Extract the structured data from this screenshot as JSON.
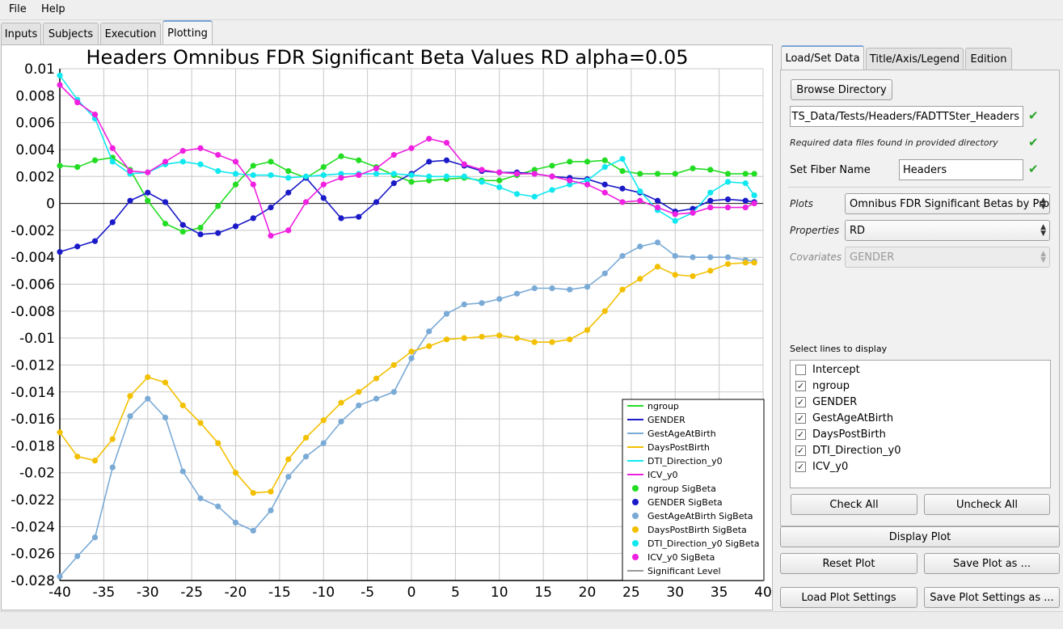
{
  "menu": {
    "file": "File",
    "help": "Help"
  },
  "main_tabs": [
    "Inputs",
    "Subjects",
    "Execution",
    "Plotting"
  ],
  "side_tabs": [
    "Load/Set Data",
    "Title/Axis/Legend",
    "Edition"
  ],
  "panel": {
    "browse_label": "Browse Directory",
    "directory_value": "TS_Data/Tests/Headers/FADTTSter_Headers",
    "files_found_text": "Required data files found in provided directory",
    "fiber_name_label": "Set Fiber Name",
    "fiber_name_value": "Headers",
    "plots_label": "Plots",
    "plots_value": "Omnibus FDR Significant Betas by Properties",
    "properties_label": "Properties",
    "properties_value": "RD",
    "covariates_label": "Covariates",
    "covariates_value": "GENDER",
    "lines_label": "Select lines to display",
    "lines": [
      {
        "label": "Intercept",
        "checked": false
      },
      {
        "label": "ngroup",
        "checked": true
      },
      {
        "label": "GENDER",
        "checked": true
      },
      {
        "label": "GestAgeAtBirth",
        "checked": true
      },
      {
        "label": "DaysPostBirth",
        "checked": true
      },
      {
        "label": "DTI_Direction_y0",
        "checked": true
      },
      {
        "label": "ICV_y0",
        "checked": true
      }
    ],
    "check_all": "Check All",
    "uncheck_all": "Uncheck All"
  },
  "buttons": {
    "display_plot": "Display Plot",
    "reset_plot": "Reset Plot",
    "save_plot_as": "Save Plot as ...",
    "load_settings": "Load Plot Settings",
    "save_settings_as": "Save Plot Settings as ..."
  },
  "colors": {
    "ngroup": "#22dd22",
    "GENDER": "#1a1ac8",
    "GestAgeAtBirth": "#7aaad6",
    "DaysPostBirth": "#f2c000",
    "DTI_Direction_y0": "#10e8f0",
    "ICV_y0": "#f020e0",
    "significant": "#333333"
  },
  "chart_data": {
    "type": "line",
    "title": "Headers Omnibus FDR Significant Beta Values RD alpha=0.05",
    "xlim": [
      -40,
      40
    ],
    "ylim": [
      -0.028,
      0.01
    ],
    "x_ticks": [
      -40,
      -35,
      -30,
      -25,
      -20,
      -15,
      -10,
      -5,
      0,
      5,
      10,
      15,
      20,
      25,
      30,
      35,
      40
    ],
    "y_ticks": [
      0.01,
      0.008,
      0.006,
      0.004,
      0.002,
      0,
      -0.002,
      -0.004,
      -0.006,
      -0.008,
      -0.01,
      -0.012,
      -0.014,
      -0.016,
      -0.018,
      -0.02,
      -0.022,
      -0.024,
      -0.026,
      -0.028
    ],
    "x_tick_labels": [
      "-40",
      "-35",
      "-30",
      "-25",
      "-20",
      "-15",
      "-10",
      "-5",
      "0",
      "5",
      "10",
      "15",
      "20",
      "25",
      "30",
      "35",
      "40"
    ],
    "y_tick_labels": [
      "0.01",
      "0.008",
      "0.006",
      "0.004",
      "0.002",
      "0",
      "-0.002",
      "-0.004",
      "-0.006",
      "-0.008",
      "-0.01",
      "-0.012",
      "-0.014",
      "-0.016",
      "-0.018",
      "-0.02",
      "-0.022",
      "-0.024",
      "-0.026",
      "-0.028"
    ],
    "grid": true,
    "legend_position": "bottom-right",
    "legend": [
      "ngroup",
      "GENDER",
      "GestAgeAtBirth",
      "DaysPostBirth",
      "DTI_Direction_y0",
      "ICV_y0",
      "ngroup SigBeta",
      "GENDER SigBeta",
      "GestAgeAtBirth SigBeta",
      "DaysPostBirth SigBeta",
      "DTI_Direction_y0 SigBeta",
      "ICV_y0 SigBeta",
      "Significant Level"
    ],
    "significant_level": 0,
    "series": [
      {
        "name": "ngroup",
        "x": [
          -40,
          -38,
          -36,
          -34,
          -32,
          -30,
          -28,
          -26,
          -24,
          -22,
          -20,
          -18,
          -16,
          -14,
          -12,
          -10,
          -8,
          -6,
          -4,
          -2,
          0,
          2,
          4,
          6,
          8,
          10,
          12,
          14,
          16,
          18,
          20,
          22,
          24,
          26,
          28,
          30,
          32,
          34,
          36,
          38,
          39
        ],
        "y": [
          0.0028,
          0.0027,
          0.0032,
          0.0034,
          0.0025,
          0.0002,
          -0.0015,
          -0.0021,
          -0.0018,
          -0.0002,
          0.0014,
          0.0028,
          0.0031,
          0.0024,
          0.0019,
          0.0027,
          0.0035,
          0.0032,
          0.0027,
          0.0021,
          0.0016,
          0.0017,
          0.0018,
          0.0019,
          0.0017,
          0.0017,
          0.0021,
          0.0025,
          0.0028,
          0.0031,
          0.0031,
          0.0032,
          0.0024,
          0.0022,
          0.0022,
          0.0022,
          0.0026,
          0.0025,
          0.0022,
          0.0022,
          0.0022
        ]
      },
      {
        "name": "GENDER",
        "x": [
          -40,
          -38,
          -36,
          -34,
          -32,
          -30,
          -28,
          -26,
          -24,
          -22,
          -20,
          -18,
          -16,
          -14,
          -12,
          -10,
          -8,
          -6,
          -4,
          -2,
          0,
          2,
          4,
          6,
          8,
          10,
          12,
          14,
          16,
          18,
          20,
          22,
          24,
          26,
          28,
          30,
          32,
          34,
          36,
          38,
          39
        ],
        "y": [
          -0.0036,
          -0.0032,
          -0.0028,
          -0.0014,
          0.0002,
          0.0008,
          0.0001,
          -0.0016,
          -0.0023,
          -0.0022,
          -0.0017,
          -0.0011,
          -0.0003,
          0.0008,
          0.0019,
          0.0004,
          -0.0011,
          -0.001,
          0.0001,
          0.0015,
          0.0022,
          0.0031,
          0.0032,
          0.0028,
          0.0024,
          0.0023,
          0.0023,
          0.0022,
          0.002,
          0.0019,
          0.0018,
          0.0014,
          0.0011,
          0.0008,
          0.0002,
          -0.0006,
          -0.0004,
          0.0002,
          0.0003,
          0.0002,
          0.0001
        ]
      },
      {
        "name": "GestAgeAtBirth",
        "x": [
          -40,
          -38,
          -36,
          -34,
          -32,
          -30,
          -28,
          -26,
          -24,
          -22,
          -20,
          -18,
          -16,
          -14,
          -12,
          -10,
          -8,
          -6,
          -4,
          -2,
          0,
          2,
          4,
          6,
          8,
          10,
          12,
          14,
          16,
          18,
          20,
          22,
          24,
          26,
          28,
          30,
          32,
          34,
          36,
          38,
          39
        ],
        "y": [
          -0.0277,
          -0.0262,
          -0.0248,
          -0.0196,
          -0.0158,
          -0.0145,
          -0.0159,
          -0.0199,
          -0.0219,
          -0.0225,
          -0.0237,
          -0.0243,
          -0.0228,
          -0.0203,
          -0.0188,
          -0.0178,
          -0.0162,
          -0.015,
          -0.0145,
          -0.014,
          -0.0115,
          -0.0095,
          -0.0082,
          -0.0075,
          -0.0074,
          -0.0071,
          -0.0067,
          -0.0063,
          -0.0063,
          -0.0064,
          -0.0062,
          -0.0052,
          -0.0039,
          -0.0032,
          -0.0029,
          -0.0039,
          -0.004,
          -0.004,
          -0.004,
          -0.0042,
          -0.0043
        ]
      },
      {
        "name": "DaysPostBirth",
        "x": [
          -40,
          -38,
          -36,
          -34,
          -32,
          -30,
          -28,
          -26,
          -24,
          -22,
          -20,
          -18,
          -16,
          -14,
          -12,
          -10,
          -8,
          -6,
          -4,
          -2,
          0,
          2,
          4,
          6,
          8,
          10,
          12,
          14,
          16,
          18,
          20,
          22,
          24,
          26,
          28,
          30,
          32,
          34,
          36,
          38,
          39
        ],
        "y": [
          -0.017,
          -0.0188,
          -0.0191,
          -0.0175,
          -0.0143,
          -0.0129,
          -0.0133,
          -0.015,
          -0.0163,
          -0.0178,
          -0.02,
          -0.0215,
          -0.0214,
          -0.019,
          -0.0174,
          -0.0161,
          -0.0148,
          -0.014,
          -0.013,
          -0.012,
          -0.011,
          -0.0106,
          -0.0101,
          -0.01,
          -0.0099,
          -0.0098,
          -0.01,
          -0.0103,
          -0.0103,
          -0.0101,
          -0.0094,
          -0.008,
          -0.0064,
          -0.0056,
          -0.0047,
          -0.0053,
          -0.0054,
          -0.005,
          -0.0045,
          -0.0044,
          -0.0044
        ]
      },
      {
        "name": "DTI_Direction_y0",
        "x": [
          -40,
          -38,
          -36,
          -34,
          -32,
          -30,
          -28,
          -26,
          -24,
          -22,
          -20,
          -18,
          -16,
          -14,
          -12,
          -10,
          -8,
          -6,
          -4,
          -2,
          0,
          2,
          4,
          6,
          8,
          10,
          12,
          14,
          16,
          18,
          20,
          22,
          24,
          26,
          28,
          30,
          32,
          34,
          36,
          38,
          39
        ],
        "y": [
          0.0095,
          0.0077,
          0.0063,
          0.0031,
          0.0022,
          0.0023,
          0.0029,
          0.0031,
          0.0029,
          0.0024,
          0.0022,
          0.0021,
          0.0021,
          0.0019,
          0.002,
          0.0021,
          0.0022,
          0.0022,
          0.0022,
          0.0022,
          0.0021,
          0.002,
          0.002,
          0.002,
          0.0016,
          0.0012,
          0.0007,
          0.0005,
          0.001,
          0.0014,
          0.0017,
          0.0027,
          0.0033,
          0.0009,
          -0.0005,
          -0.0013,
          -0.0007,
          0.0008,
          0.0016,
          0.0015,
          0.0006
        ]
      },
      {
        "name": "ICV_y0",
        "x": [
          -40,
          -38,
          -36,
          -34,
          -32,
          -30,
          -28,
          -26,
          -24,
          -22,
          -20,
          -18,
          -16,
          -14,
          -12,
          -10,
          -8,
          -6,
          -4,
          -2,
          0,
          2,
          4,
          6,
          8,
          10,
          12,
          14,
          16,
          18,
          20,
          22,
          24,
          26,
          28,
          30,
          32,
          34,
          36,
          38,
          39
        ],
        "y": [
          0.0088,
          0.0075,
          0.0066,
          0.0041,
          0.0024,
          0.0023,
          0.0031,
          0.0039,
          0.0041,
          0.0036,
          0.0031,
          0.0014,
          -0.0024,
          -0.002,
          0.0001,
          0.0014,
          0.0019,
          0.0021,
          0.0026,
          0.0036,
          0.0041,
          0.0048,
          0.0045,
          0.0029,
          0.0025,
          0.0023,
          0.0022,
          0.0022,
          0.002,
          0.0017,
          0.0014,
          0.0008,
          0.0001,
          0.0002,
          -0.0003,
          -0.0008,
          -0.0007,
          -0.0003,
          -0.0003,
          -0.0003,
          0.0
        ]
      }
    ]
  }
}
